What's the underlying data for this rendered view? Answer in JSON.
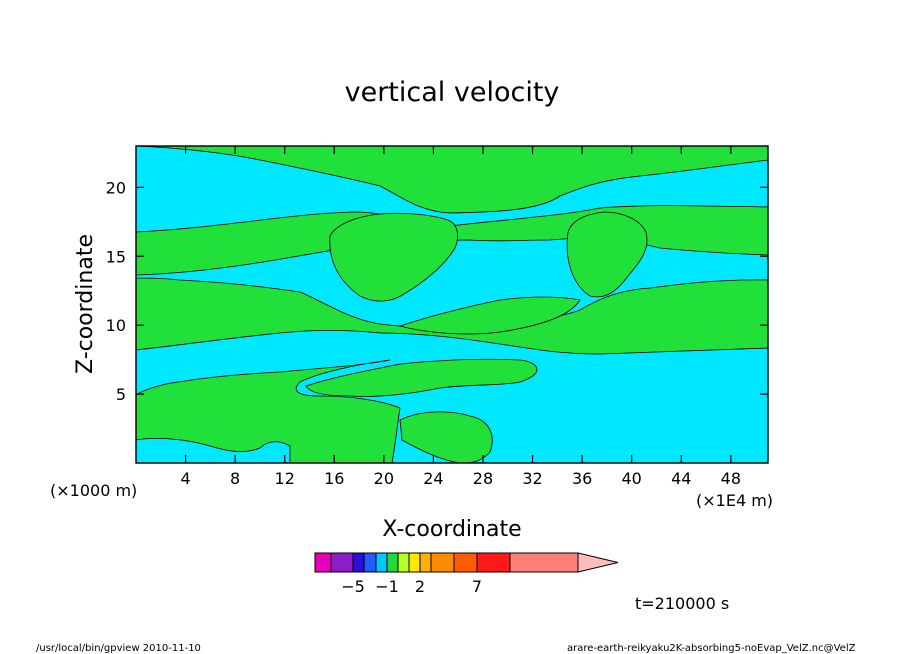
{
  "chart_data": {
    "type": "heatmap",
    "title": "vertical velocity",
    "xlabel": "X-coordinate",
    "ylabel": "Z-coordinate",
    "x_unit_left": "(×1000 m)",
    "x_unit_right": "(×1E4 m)",
    "xlim": [
      0,
      51
    ],
    "ylim": [
      0,
      23
    ],
    "xticks": [
      4,
      8,
      12,
      16,
      20,
      24,
      28,
      32,
      36,
      40,
      44,
      48
    ],
    "yticks": [
      5,
      10,
      15,
      20
    ],
    "time_label": "t=210000 s",
    "colorbar": {
      "labels": [
        {
          "text": "−5",
          "index": 2
        },
        {
          "text": "−1",
          "index": 5
        },
        {
          "text": "2",
          "index": 8
        },
        {
          "text": "7",
          "index": 11
        }
      ],
      "colors": [
        "#e800b8",
        "#8a1ec8",
        "#2a10d8",
        "#1f5dff",
        "#00c8ff",
        "#22d83a",
        "#b8ff20",
        "#ffe800",
        "#ffb000",
        "#ff8c00",
        "#ff5c00",
        "#ff1a1a",
        "#ff8078",
        "#ffbcbc"
      ],
      "segment_count": 14
    },
    "dominant_colors": {
      "positive_region": "#22e03a",
      "negative_region": "#00e8ff"
    }
  },
  "footer": {
    "left": "/usr/local/bin/gpview  2010-11-10",
    "right": "arare-earth-reikyaku2K-absorbing5-noEvap_VelZ.nc@VelZ"
  }
}
